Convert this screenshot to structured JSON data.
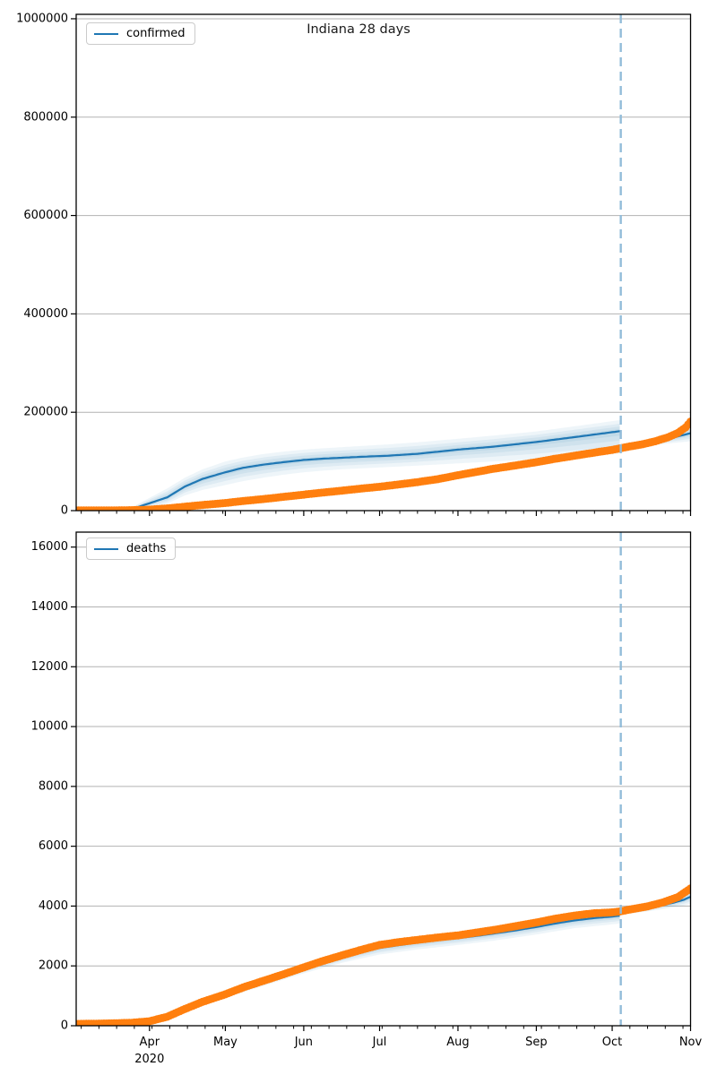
{
  "title": "Indiana 28 days",
  "colors": {
    "actual": "#ff7f0e",
    "model": "#1f77b4",
    "band": "#1f77b4",
    "grid": "#b2b2b2",
    "vline": "#92bcd9",
    "axis": "#000000"
  },
  "x_axis": {
    "t_domain": [
      2,
      245
    ],
    "months": [
      {
        "label": "Apr",
        "t": 31
      },
      {
        "label": "May",
        "t": 61
      },
      {
        "label": "Jun",
        "t": 92
      },
      {
        "label": "Jul",
        "t": 122
      },
      {
        "label": "Aug",
        "t": 153
      },
      {
        "label": "Sep",
        "t": 184
      },
      {
        "label": "Oct",
        "t": 214
      },
      {
        "label": "Nov",
        "t": 245
      }
    ],
    "year_label": "2020",
    "minor_tick_start_t": 4,
    "minor_tick_step_days": 7,
    "forecast_start_t": 217.4
  },
  "chart_data": [
    {
      "type": "line",
      "title": "Indiana 28 days",
      "legend": "confirmed",
      "ylim": [
        0,
        1009000
      ],
      "yticks": [
        0,
        200000,
        400000,
        600000,
        800000,
        1000000
      ],
      "series": {
        "actual": {
          "name": "confirmed-actual",
          "marker": "dot",
          "points": [
            [
              2,
              400
            ],
            [
              10,
              450
            ],
            [
              17,
              550
            ],
            [
              24,
              900
            ],
            [
              31,
              2000
            ],
            [
              38,
              4500
            ],
            [
              45,
              8000
            ],
            [
              52,
              11500
            ],
            [
              61,
              15500
            ],
            [
              68,
              19500
            ],
            [
              76,
              23500
            ],
            [
              84,
              28000
            ],
            [
              92,
              32500
            ],
            [
              99,
              36500
            ],
            [
              107,
              40500
            ],
            [
              114,
              44500
            ],
            [
              122,
              48500
            ],
            [
              130,
              53500
            ],
            [
              137,
              58000
            ],
            [
              145,
              64000
            ],
            [
              153,
              72000
            ],
            [
              160,
              78500
            ],
            [
              167,
              85000
            ],
            [
              176,
              92000
            ],
            [
              184,
              98500
            ],
            [
              191,
              105000
            ],
            [
              199,
              111500
            ],
            [
              207,
              118000
            ],
            [
              214,
              123500
            ],
            [
              217,
              126500
            ],
            [
              221,
              130500
            ],
            [
              226,
              135000
            ],
            [
              231,
              141000
            ],
            [
              236,
              149000
            ],
            [
              240,
              158000
            ],
            [
              243,
              169000
            ],
            [
              245,
              181000
            ]
          ]
        },
        "fit": {
          "name": "confirmed-model-fit",
          "line": [
            [
              14,
              200
            ],
            [
              20,
              800
            ],
            [
              24,
              3000
            ],
            [
              31,
              15000
            ],
            [
              38,
              27000
            ],
            [
              45,
              49000
            ],
            [
              52,
              64500
            ],
            [
              61,
              78000
            ],
            [
              68,
              87000
            ],
            [
              76,
              93500
            ],
            [
              84,
              98500
            ],
            [
              92,
              103000
            ],
            [
              99,
              105500
            ],
            [
              107,
              107500
            ],
            [
              115,
              109500
            ],
            [
              125,
              111500
            ],
            [
              137,
              115500
            ],
            [
              153,
              124000
            ],
            [
              167,
              130000
            ],
            [
              184,
              139500
            ],
            [
              200,
              150000
            ],
            [
              217,
              161500
            ]
          ],
          "band_lo": [
            [
              14,
              0
            ],
            [
              20,
              200
            ],
            [
              24,
              800
            ],
            [
              31,
              6000
            ],
            [
              38,
              14000
            ],
            [
              45,
              31000
            ],
            [
              52,
              42000
            ],
            [
              61,
              52000
            ],
            [
              68,
              60000
            ],
            [
              76,
              67000
            ],
            [
              84,
              73000
            ],
            [
              92,
              78000
            ],
            [
              99,
              81000
            ],
            [
              107,
              84000
            ],
            [
              115,
              86000
            ],
            [
              125,
              88500
            ],
            [
              137,
              91500
            ],
            [
              153,
              96000
            ],
            [
              167,
              100000
            ],
            [
              184,
              104500
            ],
            [
              200,
              110000
            ],
            [
              217,
              116000
            ]
          ],
          "band_hi": [
            [
              14,
              500
            ],
            [
              20,
              2000
            ],
            [
              24,
              7000
            ],
            [
              31,
              26000
            ],
            [
              38,
              45000
            ],
            [
              45,
              67000
            ],
            [
              52,
              84000
            ],
            [
              61,
              100000
            ],
            [
              68,
              108000
            ],
            [
              76,
              115000
            ],
            [
              84,
              120000
            ],
            [
              92,
              124000
            ],
            [
              99,
              126500
            ],
            [
              107,
              129000
            ],
            [
              115,
              131500
            ],
            [
              125,
              134500
            ],
            [
              137,
              139000
            ],
            [
              153,
              146000
            ],
            [
              167,
              152500
            ],
            [
              184,
              161000
            ],
            [
              200,
              172000
            ],
            [
              217,
              184000
            ]
          ]
        },
        "forecast": {
          "name": "confirmed-forecast",
          "line": [
            [
              217.4,
              127000
            ],
            [
              222,
              131000
            ],
            [
              227,
              135500
            ],
            [
              232,
              140500
            ],
            [
              238,
              148500
            ],
            [
              242,
              153500
            ],
            [
              245,
              157500
            ]
          ],
          "band_lo": [
            [
              217.4,
              126000
            ],
            [
              222,
              128500
            ],
            [
              227,
              131000
            ],
            [
              232,
              134000
            ],
            [
              238,
              137500
            ],
            [
              242,
              139500
            ],
            [
              245,
              141000
            ]
          ],
          "band_hi": [
            [
              217.4,
              128000
            ],
            [
              222,
              134000
            ],
            [
              227,
              140500
            ],
            [
              232,
              148000
            ],
            [
              238,
              158500
            ],
            [
              242,
              166500
            ],
            [
              245,
              173500
            ]
          ]
        }
      },
      "vline_t": 217.4
    },
    {
      "type": "line",
      "title": "",
      "legend": "deaths",
      "ylim": [
        0,
        16500
      ],
      "yticks": [
        0,
        2000,
        4000,
        6000,
        8000,
        10000,
        12000,
        14000,
        16000
      ],
      "series": {
        "actual": {
          "name": "deaths-actual",
          "marker": "dot",
          "points": [
            [
              2,
              60
            ],
            [
              10,
              70
            ],
            [
              17,
              80
            ],
            [
              24,
              100
            ],
            [
              31,
              150
            ],
            [
              38,
              300
            ],
            [
              45,
              560
            ],
            [
              52,
              800
            ],
            [
              61,
              1050
            ],
            [
              68,
              1280
            ],
            [
              76,
              1500
            ],
            [
              84,
              1720
            ],
            [
              92,
              1950
            ],
            [
              99,
              2150
            ],
            [
              107,
              2350
            ],
            [
              114,
              2520
            ],
            [
              122,
              2700
            ],
            [
              130,
              2800
            ],
            [
              137,
              2870
            ],
            [
              145,
              2950
            ],
            [
              153,
              3020
            ],
            [
              160,
              3110
            ],
            [
              167,
              3200
            ],
            [
              176,
              3330
            ],
            [
              184,
              3450
            ],
            [
              191,
              3570
            ],
            [
              199,
              3680
            ],
            [
              207,
              3760
            ],
            [
              214,
              3790
            ],
            [
              217,
              3820
            ],
            [
              222,
              3900
            ],
            [
              228,
              3990
            ],
            [
              234,
              4120
            ],
            [
              240,
              4300
            ],
            [
              245,
              4590
            ]
          ]
        },
        "fit": {
          "name": "deaths-model-fit",
          "line": [
            [
              14,
              30
            ],
            [
              24,
              80
            ],
            [
              31,
              140
            ],
            [
              38,
              290
            ],
            [
              45,
              520
            ],
            [
              52,
              760
            ],
            [
              61,
              1020
            ],
            [
              68,
              1240
            ],
            [
              76,
              1450
            ],
            [
              84,
              1680
            ],
            [
              92,
              1900
            ],
            [
              99,
              2090
            ],
            [
              107,
              2280
            ],
            [
              114,
              2450
            ],
            [
              122,
              2600
            ],
            [
              130,
              2700
            ],
            [
              137,
              2780
            ],
            [
              145,
              2860
            ],
            [
              153,
              2930
            ],
            [
              160,
              3000
            ],
            [
              167,
              3080
            ],
            [
              176,
              3190
            ],
            [
              184,
              3300
            ],
            [
              191,
              3410
            ],
            [
              199,
              3520
            ],
            [
              207,
              3600
            ],
            [
              214,
              3650
            ],
            [
              217,
              3680
            ]
          ],
          "band_lo": [
            [
              14,
              10
            ],
            [
              31,
              110
            ],
            [
              45,
              460
            ],
            [
              61,
              930
            ],
            [
              76,
              1330
            ],
            [
              92,
              1750
            ],
            [
              107,
              2100
            ],
            [
              122,
              2380
            ],
            [
              137,
              2550
            ],
            [
              153,
              2700
            ],
            [
              167,
              2840
            ],
            [
              184,
              3050
            ],
            [
              199,
              3260
            ],
            [
              214,
              3390
            ],
            [
              217,
              3420
            ]
          ],
          "band_hi": [
            [
              14,
              60
            ],
            [
              31,
              180
            ],
            [
              45,
              580
            ],
            [
              61,
              1110
            ],
            [
              76,
              1560
            ],
            [
              92,
              2020
            ],
            [
              107,
              2420
            ],
            [
              122,
              2750
            ],
            [
              137,
              2940
            ],
            [
              153,
              3090
            ],
            [
              167,
              3240
            ],
            [
              184,
              3480
            ],
            [
              199,
              3700
            ],
            [
              214,
              3830
            ],
            [
              217,
              3870
            ]
          ]
        },
        "forecast": {
          "name": "deaths-forecast",
          "line": [
            [
              217.4,
              3750
            ],
            [
              222,
              3820
            ],
            [
              227,
              3900
            ],
            [
              232,
              3990
            ],
            [
              238,
              4110
            ],
            [
              242,
              4200
            ],
            [
              245,
              4310
            ]
          ],
          "band_lo": [
            [
              217.4,
              3720
            ],
            [
              222,
              3760
            ],
            [
              227,
              3810
            ],
            [
              232,
              3870
            ],
            [
              238,
              3950
            ],
            [
              242,
              4010
            ],
            [
              245,
              4080
            ]
          ],
          "band_hi": [
            [
              217.4,
              3780
            ],
            [
              222,
              3880
            ],
            [
              227,
              4000
            ],
            [
              232,
              4130
            ],
            [
              238,
              4300
            ],
            [
              242,
              4430
            ],
            [
              245,
              4540
            ]
          ]
        }
      },
      "vline_t": 217.4
    }
  ]
}
